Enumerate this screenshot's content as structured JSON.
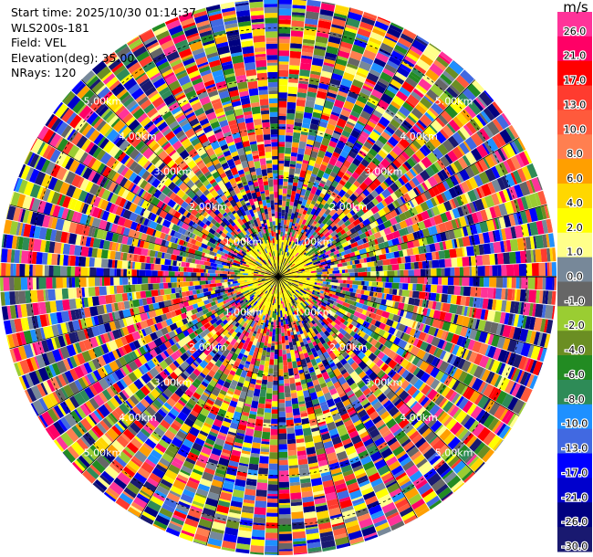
{
  "info": {
    "start_time": "Start time: 2025/10/30 01:14:37",
    "site": "WLS200s-181",
    "field": "Field: VEL",
    "elevation": "Elevation(deg): 35.00",
    "nrays": "NRays: 120"
  },
  "colorbar": {
    "unit": "m/s",
    "bins": [
      {
        "label": "26.0",
        "color": "#ff3399"
      },
      {
        "label": "21.0",
        "color": "#ff0066"
      },
      {
        "label": "17.0",
        "color": "#ff0000"
      },
      {
        "label": "13.0",
        "color": "#ff3b2f"
      },
      {
        "label": "10.0",
        "color": "#ff5a3c"
      },
      {
        "label": "8.0",
        "color": "#ff7f50"
      },
      {
        "label": "6.0",
        "color": "#ff9f00"
      },
      {
        "label": "4.0",
        "color": "#ffd700"
      },
      {
        "label": "2.0",
        "color": "#ffff00"
      },
      {
        "label": "1.0",
        "color": "#ffff8a"
      },
      {
        "label": "0.0",
        "color": "#778899"
      },
      {
        "label": "-1.0",
        "color": "#666666"
      },
      {
        "label": "-2.0",
        "color": "#9acd32"
      },
      {
        "label": "-4.0",
        "color": "#6b8e23"
      },
      {
        "label": "-6.0",
        "color": "#228b22"
      },
      {
        "label": "-8.0",
        "color": "#2e8b57"
      },
      {
        "label": "-10.0",
        "color": "#1e90ff"
      },
      {
        "label": "-13.0",
        "color": "#4169e1"
      },
      {
        "label": "-17.0",
        "color": "#0000ff"
      },
      {
        "label": "-21.0",
        "color": "#0000cd"
      },
      {
        "label": "-26.0",
        "color": "#000080"
      },
      {
        "label": "-30.0",
        "color": "#191970"
      }
    ]
  },
  "chart_data": {
    "type": "heatmap",
    "projection": "polar-ppi",
    "field": "VEL",
    "units": "m/s",
    "n_rays": 120,
    "range_ring_labels": [
      "1.00km",
      "2.00km",
      "3.00km",
      "4.00km",
      "5.00km"
    ],
    "range_ring_km": [
      1,
      2,
      3,
      4,
      5
    ],
    "max_range_km": 5.6,
    "label_azimuths_deg": [
      45,
      135,
      225,
      315
    ],
    "grid": true
  }
}
